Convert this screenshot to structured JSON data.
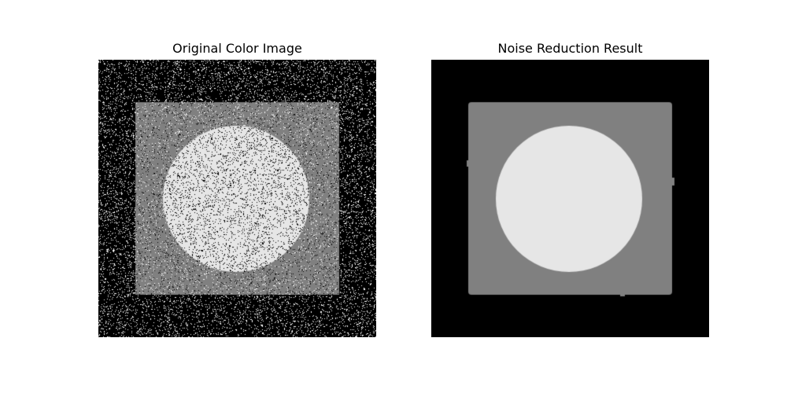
{
  "panels": [
    {
      "title": "Original Color Image",
      "content": "noisy-image"
    },
    {
      "title": "Noise Reduction Result",
      "content": "denoised-image"
    }
  ],
  "colors": {
    "background": "#000000",
    "square": "#808080",
    "circle": "#e6e6e6",
    "noise_light": "#ffffff",
    "noise_dark": "#000000"
  },
  "noise": {
    "amount": 0.11
  }
}
